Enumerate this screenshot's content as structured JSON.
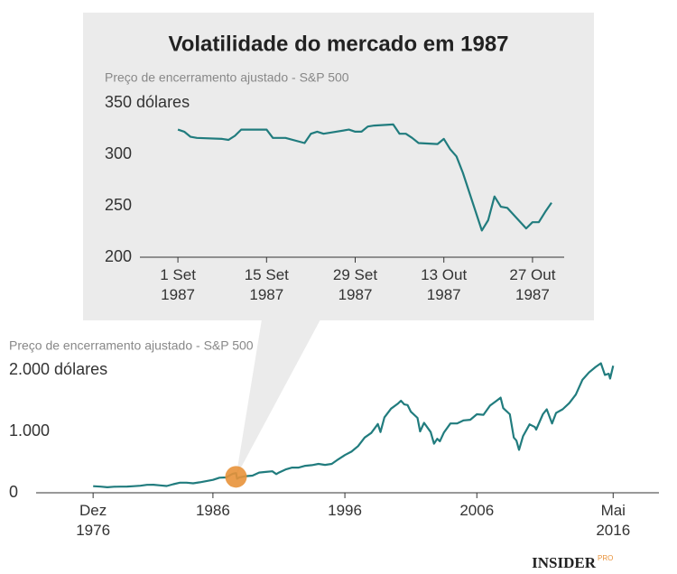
{
  "brand": "INSIDER",
  "brand_suffix": "PRO",
  "chart_data": [
    {
      "type": "line",
      "title": "Volatilidade do mercado em 1987",
      "subtitle": "Preço de encerramento ajustado - S&P 500",
      "color": "#217c7e",
      "x": [
        "1987-09-01",
        "1987-09-02",
        "1987-09-03",
        "1987-09-04",
        "1987-09-08",
        "1987-09-09",
        "1987-09-10",
        "1987-09-11",
        "1987-09-14",
        "1987-09-15",
        "1987-09-16",
        "1987-09-17",
        "1987-09-18",
        "1987-09-21",
        "1987-09-22",
        "1987-09-23",
        "1987-09-24",
        "1987-09-25",
        "1987-09-28",
        "1987-09-29",
        "1987-09-30",
        "1987-10-01",
        "1987-10-02",
        "1987-10-05",
        "1987-10-06",
        "1987-10-07",
        "1987-10-08",
        "1987-10-09",
        "1987-10-12",
        "1987-10-13",
        "1987-10-14",
        "1987-10-15",
        "1987-10-16",
        "1987-10-19",
        "1987-10-20",
        "1987-10-21",
        "1987-10-22",
        "1987-10-23",
        "1987-10-26",
        "1987-10-27",
        "1987-10-28",
        "1987-10-29",
        "1987-10-30"
      ],
      "values": [
        324,
        322,
        317,
        316,
        315,
        314,
        318,
        324,
        324,
        324,
        316,
        316,
        316,
        311,
        320,
        322,
        320,
        321,
        324,
        322,
        322,
        327,
        328,
        329,
        320,
        320,
        316,
        311,
        310,
        315,
        305,
        298,
        282,
        226,
        236,
        259,
        249,
        248,
        228,
        234,
        234,
        244,
        253
      ],
      "xlim": [
        "1987-08-26",
        "1987-11-01"
      ],
      "xticks": [
        {
          "value": "1987-09-01",
          "label": "1 Set 1987"
        },
        {
          "value": "1987-09-15",
          "label": "15 Set 1987"
        },
        {
          "value": "1987-09-29",
          "label": "29 Set 1987"
        },
        {
          "value": "1987-10-13",
          "label": "13 Out 1987"
        },
        {
          "value": "1987-10-27",
          "label": "27 Out 1987"
        }
      ],
      "ylim": [
        200,
        350
      ],
      "yticks": [
        200,
        250,
        300,
        {
          "value": 350,
          "label": "350 dólares"
        }
      ]
    },
    {
      "type": "line",
      "subtitle": "Preço de encerramento ajustado - S&P 500",
      "color": "#217c7e",
      "x": [
        1976.92,
        1977.5,
        1978,
        1978.5,
        1979,
        1979.5,
        1980,
        1980.5,
        1981,
        1981.5,
        1982,
        1982.5,
        1983,
        1983.5,
        1984,
        1984.5,
        1985,
        1985.5,
        1986,
        1986.5,
        1987,
        1987.5,
        1987.75,
        1987.83,
        1988,
        1988.5,
        1989,
        1989.5,
        1990,
        1990.5,
        1990.8,
        1991,
        1991.5,
        1992,
        1992.5,
        1993,
        1993.5,
        1994,
        1994.5,
        1995,
        1995.5,
        1996,
        1996.5,
        1997,
        1997.5,
        1998,
        1998.5,
        1998.7,
        1999,
        1999.5,
        2000,
        2000.25,
        2000.5,
        2000.75,
        2001,
        2001.5,
        2001.7,
        2002,
        2002.5,
        2002.75,
        2003,
        2003.2,
        2003.5,
        2004,
        2004.5,
        2005,
        2005.5,
        2006,
        2006.5,
        2007,
        2007.5,
        2007.8,
        2008,
        2008.5,
        2008.8,
        2009,
        2009.2,
        2009.5,
        2010,
        2010.4,
        2010.5,
        2011,
        2011.3,
        2011.7,
        2012,
        2012.5,
        2013,
        2013.5,
        2014,
        2014.5,
        2015,
        2015.4,
        2015.7,
        2016,
        2016.1,
        2016.33
      ],
      "values": [
        107,
        100,
        90,
        98,
        100,
        102,
        108,
        115,
        130,
        131,
        120,
        110,
        140,
        165,
        165,
        155,
        170,
        190,
        210,
        245,
        250,
        310,
        320,
        230,
        250,
        270,
        280,
        330,
        340,
        350,
        305,
        330,
        380,
        410,
        410,
        440,
        450,
        470,
        455,
        470,
        545,
        615,
        670,
        760,
        900,
        975,
        1120,
        990,
        1230,
        1370,
        1450,
        1500,
        1440,
        1430,
        1320,
        1220,
        1000,
        1140,
        990,
        800,
        880,
        840,
        980,
        1130,
        1130,
        1180,
        1190,
        1280,
        1270,
        1420,
        1500,
        1550,
        1380,
        1280,
        900,
        850,
        700,
        920,
        1115,
        1070,
        1030,
        1280,
        1360,
        1130,
        1300,
        1360,
        1460,
        1600,
        1840,
        1960,
        2050,
        2110,
        1920,
        1940,
        1860,
        2070
      ],
      "xlim": [
        1972.6,
        2019.8
      ],
      "xticks": [
        {
          "value": 1976.92,
          "label": "Dez 1976"
        },
        1986,
        1996,
        2006,
        {
          "value": 2016.33,
          "label": "Mai 2016"
        }
      ],
      "ylim": [
        0,
        2000
      ],
      "yticks": [
        0,
        {
          "value": 1000,
          "label": "1.000"
        },
        {
          "value": 2000,
          "label": "2.000 dólares"
        }
      ],
      "highlight": {
        "x": 1987.75,
        "y": 260,
        "color": "#e8923a"
      }
    }
  ]
}
